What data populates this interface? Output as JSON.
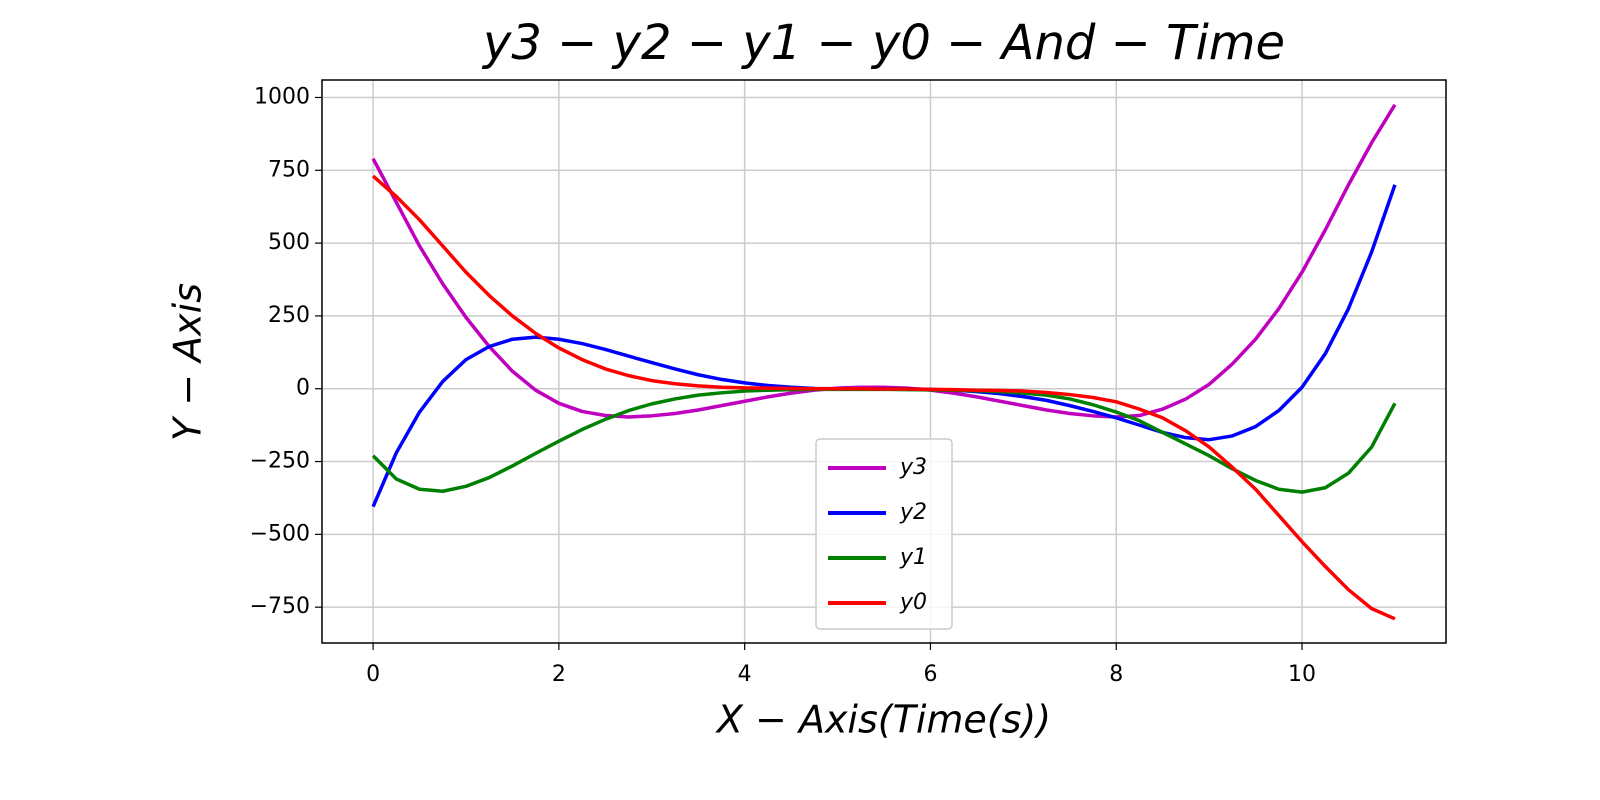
{
  "chart_data": {
    "type": "line",
    "title": "y3 − y2 − y1 − y0 − And − Time",
    "x_label": "X − Axis(Time(s))",
    "y_label": "Y − Axis",
    "x": [
      0,
      0.25,
      0.5,
      0.75,
      1,
      1.25,
      1.5,
      1.75,
      2,
      2.25,
      2.5,
      2.75,
      3,
      3.25,
      3.5,
      3.75,
      4,
      4.25,
      4.5,
      4.75,
      5,
      5.25,
      5.5,
      5.75,
      6,
      6.25,
      6.5,
      6.75,
      7,
      7.25,
      7.5,
      7.75,
      8,
      8.25,
      8.5,
      8.75,
      9,
      9.25,
      9.5,
      9.75,
      10,
      10.25,
      10.5,
      10.75,
      11
    ],
    "series": [
      {
        "name": "y3",
        "color": "#bf00bf",
        "values": [
          790,
          640,
          490,
          360,
          245,
          145,
          60,
          -5,
          -50,
          -78,
          -92,
          -97,
          -93,
          -85,
          -73,
          -58,
          -43,
          -28,
          -15,
          -5,
          2,
          5,
          5,
          2,
          -5,
          -15,
          -28,
          -43,
          -58,
          -73,
          -85,
          -93,
          -97,
          -92,
          -70,
          -35,
          15,
          85,
          170,
          275,
          400,
          545,
          700,
          845,
          975
        ]
      },
      {
        "name": "y2",
        "color": "#0000ff",
        "values": [
          -405,
          -220,
          -80,
          25,
          100,
          145,
          170,
          177,
          170,
          155,
          135,
          112,
          90,
          68,
          48,
          32,
          20,
          11,
          5,
          1,
          0,
          0,
          0,
          0,
          -2,
          -5,
          -10,
          -17,
          -27,
          -40,
          -58,
          -78,
          -100,
          -125,
          -150,
          -168,
          -175,
          -162,
          -130,
          -75,
          5,
          120,
          275,
          470,
          700
        ]
      },
      {
        "name": "y1",
        "color": "#008000",
        "values": [
          -230,
          -310,
          -345,
          -352,
          -335,
          -305,
          -265,
          -222,
          -180,
          -140,
          -105,
          -75,
          -52,
          -35,
          -22,
          -14,
          -8,
          -5,
          -3,
          -2,
          -2,
          -2,
          -2,
          -3,
          -4,
          -5,
          -7,
          -10,
          -15,
          -22,
          -35,
          -55,
          -80,
          -110,
          -150,
          -190,
          -230,
          -275,
          -315,
          -345,
          -355,
          -340,
          -290,
          -200,
          -50
        ]
      },
      {
        "name": "y0",
        "color": "#ff0000",
        "values": [
          730,
          660,
          580,
          490,
          400,
          320,
          250,
          190,
          140,
          100,
          68,
          45,
          28,
          17,
          10,
          5,
          3,
          2,
          1,
          0,
          0,
          0,
          -1,
          -1,
          -2,
          -3,
          -5,
          -6,
          -8,
          -13,
          -20,
          -30,
          -45,
          -70,
          -100,
          -145,
          -200,
          -270,
          -345,
          -435,
          -525,
          -610,
          -690,
          -755,
          -790
        ]
      }
    ],
    "xlim": [
      -0.55,
      11.55
    ],
    "ylim": [
      -873,
      1060
    ],
    "xticks": [
      0,
      2,
      4,
      6,
      8,
      10
    ],
    "yticks": [
      {
        "value": -750,
        "label": "−750"
      },
      {
        "value": -500,
        "label": "−500"
      },
      {
        "value": -250,
        "label": "−250"
      },
      0,
      250,
      500,
      750,
      1000
    ],
    "grid": true,
    "legend": "lower center"
  }
}
